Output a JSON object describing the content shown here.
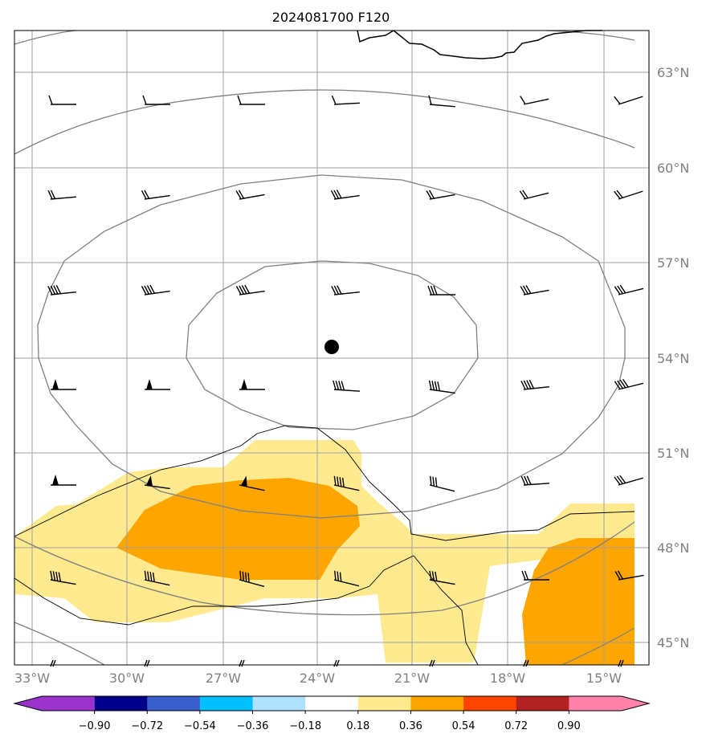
{
  "title": "2024081700 F120",
  "map": {
    "lon_ticks": [
      "33°W",
      "30°W",
      "27°W",
      "24°W",
      "21°W",
      "18°W",
      "15°W"
    ],
    "lat_ticks": [
      "63°N",
      "60°N",
      "57°N",
      "54°N",
      "51°N",
      "48°N",
      "45°N"
    ],
    "center_marker": "black-dot",
    "fill_colors": {
      "light": "#ffea8f",
      "medium": "#ffa500"
    }
  },
  "colorbar": {
    "colors": [
      "#9933cc",
      "#00008b",
      "#3a5fcd",
      "#00bfff",
      "#b0e2ff",
      "#ffffff",
      "#ffea8f",
      "#ffa500",
      "#ff4500",
      "#b22222",
      "#ff82ab"
    ],
    "labels": [
      "−0.90",
      "−0.72",
      "−0.54",
      "−0.36",
      "−0.18",
      "0.18",
      "0.36",
      "0.54",
      "0.72",
      "0.90"
    ]
  }
}
